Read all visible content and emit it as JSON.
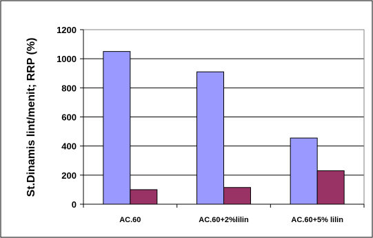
{
  "chart_data": {
    "type": "bar",
    "categories": [
      "AC.60",
      "AC.60+2%lilin",
      "AC.60+5% lilin"
    ],
    "series": [
      {
        "values": [
          1050,
          910,
          455
        ],
        "color": "#9999ff"
      },
      {
        "values": [
          100,
          115,
          230
        ],
        "color": "#993366"
      }
    ],
    "title": "",
    "xlabel": "",
    "ylabel": "St.Dinamis lint/menit;  RRP (%)",
    "ylim": [
      0,
      1200
    ],
    "yticks": [
      0,
      200,
      400,
      600,
      800,
      1000,
      1200
    ],
    "grid": true,
    "legend": "none"
  }
}
